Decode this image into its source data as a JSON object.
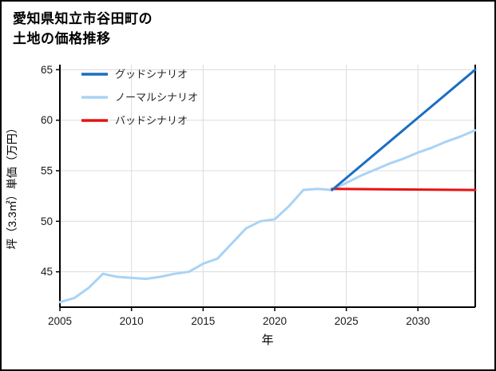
{
  "title": {
    "line1": "愛知県知立市谷田町の",
    "line2": "土地の価格推移"
  },
  "chart_data": {
    "type": "line",
    "title": "愛知県知立市谷田町の土地の価格推移",
    "xlabel": "年",
    "ylabel": "坪（3.3㎡）単価（万円）",
    "xlim": [
      2005,
      2034
    ],
    "ylim": [
      41.5,
      65.5
    ],
    "xticks": [
      2005,
      2010,
      2015,
      2020,
      2025,
      2030
    ],
    "yticks": [
      45,
      50,
      55,
      60,
      65
    ],
    "grid": true,
    "legend_position": "top-left",
    "axis_color": "#000000",
    "grid_color": "#dcdcdc",
    "tick_label_color": "#1a1a1a",
    "series": [
      {
        "name": "グッドシナリオ",
        "slug": "good-scenario",
        "color": "#1b6ec2",
        "x": [
          2024,
          2034
        ],
        "values": [
          53.1,
          65.0
        ]
      },
      {
        "name": "ノーマルシナリオ",
        "slug": "normal-scenario",
        "color": "#a9d3f5",
        "x": [
          2005,
          2006,
          2007,
          2008,
          2009,
          2010,
          2011,
          2012,
          2013,
          2014,
          2015,
          2016,
          2017,
          2018,
          2019,
          2020,
          2021,
          2022,
          2023,
          2024,
          2025,
          2026,
          2027,
          2028,
          2029,
          2030,
          2031,
          2032,
          2033,
          2034
        ],
        "values": [
          42.0,
          42.4,
          43.4,
          44.8,
          44.5,
          44.4,
          44.3,
          44.5,
          44.8,
          45.0,
          45.8,
          46.3,
          47.8,
          49.3,
          50.0,
          50.2,
          51.5,
          53.1,
          53.2,
          53.1,
          53.8,
          54.5,
          55.1,
          55.7,
          56.2,
          56.8,
          57.3,
          57.9,
          58.4,
          59.0
        ]
      },
      {
        "name": "バッドシナリオ",
        "slug": "bad-scenario",
        "color": "#e81212",
        "x": [
          2024,
          2034
        ],
        "values": [
          53.2,
          53.1
        ]
      }
    ]
  }
}
